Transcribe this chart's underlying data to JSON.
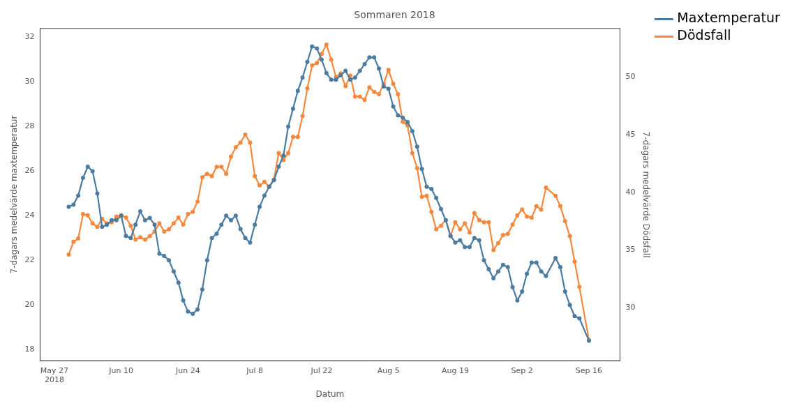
{
  "chart_data": {
    "type": "line",
    "title": "Sommaren 2018",
    "xlabel": "Datum",
    "ylabel": "7-dagars medelvärde maxtemperatur",
    "y2label": "7-dagars medelvärde Dödsfall",
    "x": [
      "2018-05-30",
      "2018-05-31",
      "2018-06-01",
      "2018-06-02",
      "2018-06-03",
      "2018-06-04",
      "2018-06-05",
      "2018-06-06",
      "2018-06-07",
      "2018-06-08",
      "2018-06-09",
      "2018-06-10",
      "2018-06-11",
      "2018-06-12",
      "2018-06-13",
      "2018-06-14",
      "2018-06-15",
      "2018-06-16",
      "2018-06-17",
      "2018-06-18",
      "2018-06-19",
      "2018-06-20",
      "2018-06-21",
      "2018-06-22",
      "2018-06-23",
      "2018-06-24",
      "2018-06-25",
      "2018-06-26",
      "2018-06-27",
      "2018-06-28",
      "2018-06-29",
      "2018-06-30",
      "2018-07-01",
      "2018-07-02",
      "2018-07-03",
      "2018-07-04",
      "2018-07-05",
      "2018-07-06",
      "2018-07-07",
      "2018-07-08",
      "2018-07-09",
      "2018-07-10",
      "2018-07-11",
      "2018-07-12",
      "2018-07-13",
      "2018-07-14",
      "2018-07-15",
      "2018-07-16",
      "2018-07-17",
      "2018-07-18",
      "2018-07-19",
      "2018-07-20",
      "2018-07-21",
      "2018-07-22",
      "2018-07-23",
      "2018-07-24",
      "2018-07-25",
      "2018-07-26",
      "2018-07-27",
      "2018-07-28",
      "2018-07-29",
      "2018-07-30",
      "2018-07-31",
      "2018-08-01",
      "2018-08-02",
      "2018-08-03",
      "2018-08-04",
      "2018-08-05",
      "2018-08-06",
      "2018-08-07",
      "2018-08-08",
      "2018-08-09",
      "2018-08-10",
      "2018-08-11",
      "2018-08-12",
      "2018-08-13",
      "2018-08-14",
      "2018-08-15",
      "2018-08-16",
      "2018-08-17",
      "2018-08-18",
      "2018-08-19",
      "2018-08-20",
      "2018-08-21",
      "2018-08-22",
      "2018-08-23",
      "2018-08-24",
      "2018-08-25",
      "2018-08-26",
      "2018-08-27",
      "2018-08-28",
      "2018-08-29",
      "2018-08-30",
      "2018-08-31",
      "2018-09-01",
      "2018-09-02",
      "2018-09-03",
      "2018-09-04",
      "2018-09-05",
      "2018-09-06",
      "2018-09-07",
      "2018-09-09",
      "2018-09-10",
      "2018-09-11",
      "2018-09-12",
      "2018-09-13",
      "2018-09-14",
      "2018-09-16"
    ],
    "series": [
      {
        "name": "Maxtemperatur",
        "color": "#4a7ba1",
        "values": [
          24.4,
          24.5,
          24.9,
          25.7,
          26.2,
          26.0,
          25.0,
          23.5,
          23.6,
          23.8,
          23.8,
          24.0,
          23.1,
          23.0,
          23.6,
          24.2,
          23.8,
          23.9,
          23.6,
          22.3,
          22.2,
          22.0,
          21.5,
          21.0,
          20.2,
          19.7,
          19.6,
          19.8,
          20.7,
          22.0,
          23.0,
          23.2,
          23.6,
          24.0,
          23.8,
          24.0,
          23.4,
          23.0,
          22.8,
          23.6,
          24.4,
          24.9,
          25.3,
          25.6,
          26.2,
          26.7,
          28.0,
          28.8,
          29.6,
          30.2,
          30.9,
          31.6,
          31.5,
          31.0,
          30.4,
          30.1,
          30.1,
          30.3,
          30.5,
          30.1,
          30.2,
          30.5,
          30.8,
          31.1,
          31.1,
          30.6,
          29.8,
          29.7,
          28.9,
          28.5,
          28.4,
          28.2,
          27.8,
          27.1,
          26.1,
          25.3,
          25.2,
          24.8,
          24.3,
          23.8,
          23.1,
          22.8,
          22.9,
          22.6,
          22.6,
          23.0,
          22.9,
          22.0,
          21.6,
          21.2,
          21.5,
          21.8,
          21.7,
          20.8,
          20.2,
          20.6,
          21.4,
          21.9,
          21.9,
          21.5,
          21.3,
          22.1,
          21.7,
          20.6,
          20.0,
          19.5,
          19.4,
          18.4
        ]
      },
      {
        "name": "Dödsfall",
        "color": "#f5883c",
        "axis": "y2",
        "values": [
          34.6,
          35.7,
          36.0,
          38.1,
          38.0,
          37.3,
          37.0,
          37.7,
          37.3,
          37.4,
          37.9,
          38.0,
          37.8,
          37.1,
          35.9,
          36.1,
          35.9,
          36.2,
          36.6,
          37.3,
          36.6,
          36.8,
          37.3,
          37.8,
          37.2,
          38.1,
          38.3,
          39.2,
          41.3,
          41.6,
          41.4,
          42.2,
          42.2,
          41.6,
          43.1,
          43.9,
          44.3,
          45.0,
          44.3,
          41.4,
          40.6,
          40.9,
          40.5,
          41.1,
          43.4,
          42.8,
          43.4,
          44.8,
          44.8,
          46.6,
          49.0,
          51.0,
          51.2,
          52.0,
          52.8,
          51.5,
          50.0,
          50.3,
          49.2,
          50.1,
          48.3,
          48.3,
          48.0,
          49.1,
          48.7,
          48.5,
          49.4,
          50.6,
          49.4,
          48.5,
          46.1,
          45.8,
          43.4,
          42.1,
          39.6,
          39.7,
          38.3,
          36.8,
          37.1,
          37.6,
          36.2,
          37.4,
          36.8,
          37.3,
          36.5,
          38.2,
          37.6,
          37.4,
          37.4,
          35.0,
          35.6,
          36.3,
          36.4,
          37.2,
          38.0,
          38.5,
          37.9,
          37.8,
          38.8,
          38.5,
          40.4,
          39.7,
          38.8,
          37.5,
          36.2,
          34.0,
          31.8,
          27.2
        ]
      }
    ],
    "xlim": [
      "2018-05-24",
      "2018-09-22T12:00"
    ],
    "xticks": [
      {
        "value": "2018-05-27",
        "label": "May 27\n2018"
      },
      {
        "value": "2018-06-10",
        "label": "Jun 10"
      },
      {
        "value": "2018-06-24",
        "label": "Jun 24"
      },
      {
        "value": "2018-07-08",
        "label": "Jul 8"
      },
      {
        "value": "2018-07-22",
        "label": "Jul 22"
      },
      {
        "value": "2018-08-05",
        "label": "Aug 5"
      },
      {
        "value": "2018-08-19",
        "label": "Aug 19"
      },
      {
        "value": "2018-09-02",
        "label": "Sep 2"
      },
      {
        "value": "2018-09-16",
        "label": "Sep 16"
      }
    ],
    "ylim": [
      17.5,
      32.4
    ],
    "yticks": [
      18,
      20,
      22,
      24,
      26,
      28,
      30,
      32
    ],
    "y2lim": [
      25.4,
      54.2
    ],
    "y2ticks": [
      30,
      35,
      40,
      45,
      50
    ],
    "grid": false,
    "legend": "top right",
    "marker": "circle",
    "line_style": "solid"
  }
}
